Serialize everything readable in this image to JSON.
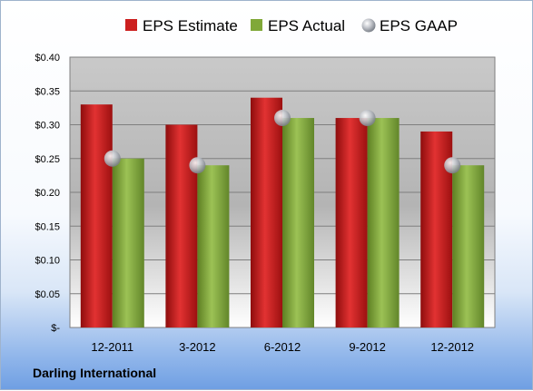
{
  "chart_data": {
    "type": "bar",
    "categories": [
      "12-2011",
      "3-2012",
      "6-2012",
      "9-2012",
      "12-2012"
    ],
    "series": [
      {
        "name": "EPS Estimate",
        "values": [
          0.33,
          0.3,
          0.34,
          0.31,
          0.29
        ],
        "color": "#cc1f1f",
        "kind": "bar"
      },
      {
        "name": "EPS Actual",
        "values": [
          0.25,
          0.24,
          0.31,
          0.31,
          0.24
        ],
        "color": "#80a838",
        "kind": "bar"
      },
      {
        "name": "EPS GAAP",
        "values": [
          0.25,
          0.24,
          0.31,
          0.31,
          0.24
        ],
        "color": "#b8bcc4",
        "kind": "marker"
      }
    ],
    "ylim": [
      0,
      0.4
    ],
    "yticks": [
      0,
      0.05,
      0.1,
      0.15,
      0.2,
      0.25,
      0.3,
      0.35,
      0.4
    ],
    "ytick_labels": [
      "$-",
      "$0.05",
      "$0.10",
      "$0.15",
      "$0.20",
      "$0.25",
      "$0.30",
      "$0.35",
      "$0.40"
    ],
    "grid": true,
    "legend_position": "top"
  },
  "footer": {
    "company": "Darling International"
  }
}
